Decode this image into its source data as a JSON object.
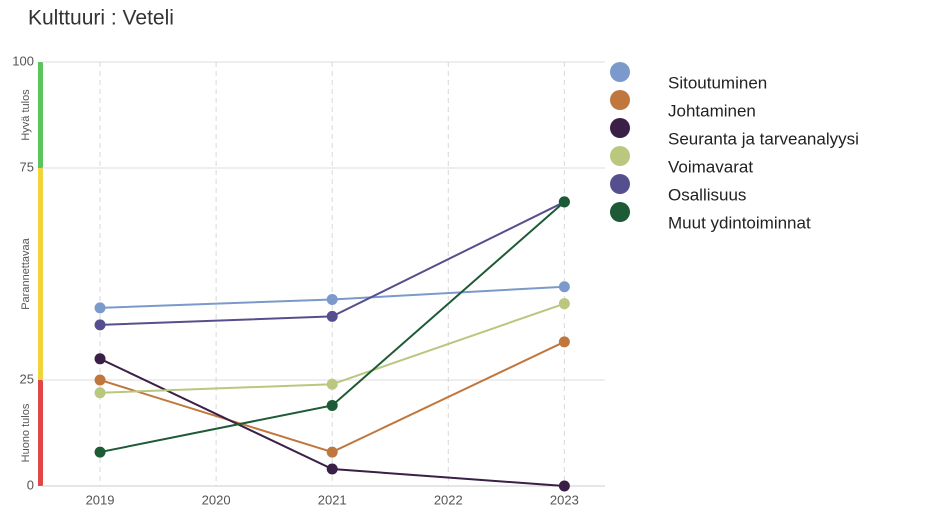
{
  "chart_data": {
    "type": "line",
    "title": "Kulttuuri : Veteli",
    "x": [
      2019,
      2021,
      2023
    ],
    "xlim": [
      2018.5,
      2023.35
    ],
    "xticks": [
      2019,
      2020,
      2021,
      2022,
      2023
    ],
    "ylim": [
      0,
      100
    ],
    "yticks": [
      0,
      25,
      75,
      100
    ],
    "grid": true,
    "bands": [
      {
        "label": "Hyvä tulos",
        "from": 75,
        "to": 100,
        "color": "#5cc45c"
      },
      {
        "label": "Parannettavaa",
        "from": 25,
        "to": 75,
        "color": "#f2d43a"
      },
      {
        "label": "Huono tulos",
        "from": 0,
        "to": 25,
        "color": "#e04848"
      }
    ],
    "series": [
      {
        "name": "Sitoutuminen",
        "color": "#7b9acb",
        "values": [
          42,
          44,
          47
        ]
      },
      {
        "name": "Johtaminen",
        "color": "#c0773e",
        "values": [
          25,
          8,
          34
        ]
      },
      {
        "name": "Seuranta ja tarveanalyysi",
        "color": "#3a1f47",
        "values": [
          30,
          4,
          0
        ]
      },
      {
        "name": "Voimavarat",
        "color": "#b9c77f",
        "values": [
          22,
          24,
          43
        ]
      },
      {
        "name": "Osallisuus",
        "color": "#564f8f",
        "values": [
          38,
          40,
          67
        ]
      },
      {
        "name": "Muut ydintoiminnat",
        "color": "#1d5a36",
        "values": [
          8,
          19,
          67
        ]
      }
    ]
  }
}
